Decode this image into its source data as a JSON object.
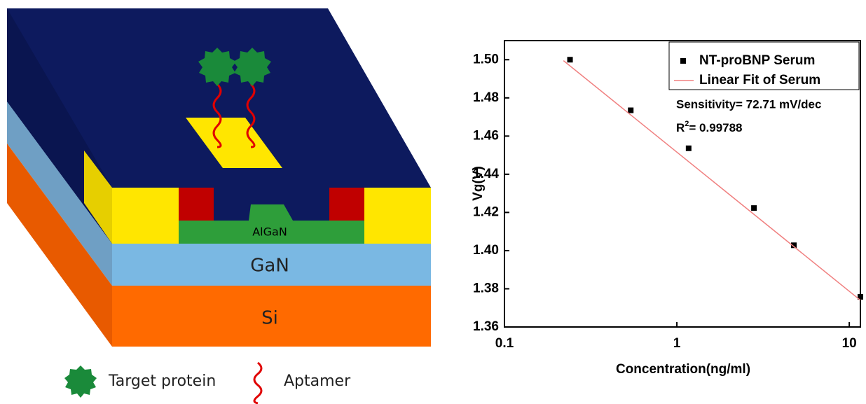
{
  "diagram": {
    "layers": {
      "algan": "AlGaN",
      "gan": "GaN",
      "si": "Si"
    },
    "legend": {
      "protein": "Target protein",
      "aptamer": "Aptamer"
    }
  },
  "chart_data": {
    "type": "scatter",
    "xscale": "log",
    "xlabel": "Concentration(ng/ml)",
    "ylabel": "Vg(V)",
    "xlim": [
      0.1,
      11.6
    ],
    "xticks": [
      0.1,
      1,
      10
    ],
    "ylim": [
      1.36,
      1.51
    ],
    "yticks": [
      1.36,
      1.38,
      {
        "value": 1.4,
        "label": "1.40"
      },
      1.42,
      1.44,
      1.46,
      1.48,
      {
        "value": 1.5,
        "label": "1.50"
      }
    ],
    "series": [
      {
        "name": "NT-proBNP Serum",
        "color": "#000000",
        "marker": "square",
        "x": [
          0.24,
          0.54,
          1.17,
          2.8,
          4.77,
          11.6
        ],
        "values": [
          1.5,
          1.4735,
          1.4536,
          1.4223,
          1.4028,
          1.3758
        ]
      },
      {
        "name": "Linear Fit of Serum",
        "color": "#f08080",
        "marker": "line",
        "x": [
          0.22,
          11.6
        ],
        "values": [
          1.4995,
          1.374
        ]
      }
    ],
    "annotations": {
      "sensitivity": "Sensitivity= 72.71 mV/dec",
      "r2": {
        "base": "R",
        "sup": "2",
        "rest": "= 0.99788"
      }
    }
  }
}
